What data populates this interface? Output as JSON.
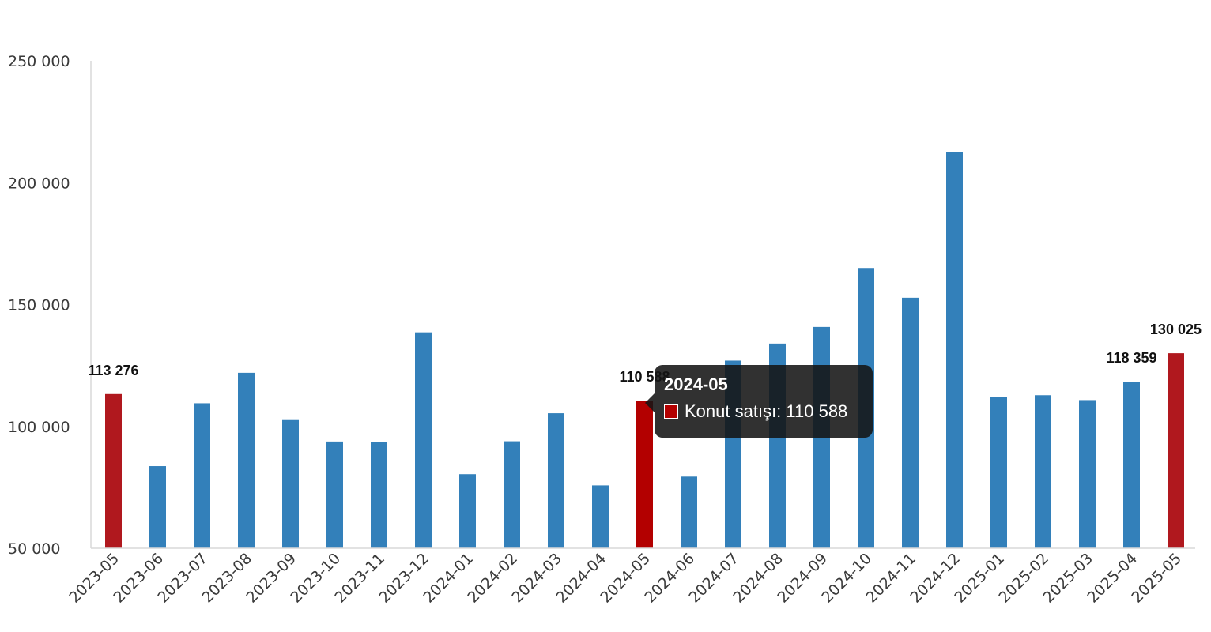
{
  "chart_data": {
    "type": "bar",
    "categories": [
      "2023-05",
      "2023-06",
      "2023-07",
      "2023-08",
      "2023-09",
      "2023-10",
      "2023-11",
      "2023-12",
      "2024-01",
      "2024-02",
      "2024-03",
      "2024-04",
      "2024-05",
      "2024-06",
      "2024-07",
      "2024-08",
      "2024-09",
      "2024-10",
      "2024-11",
      "2024-12",
      "2025-01",
      "2025-02",
      "2025-03",
      "2025-04",
      "2025-05"
    ],
    "series": [
      {
        "name": "Konut satışı",
        "values": [
          113276,
          83700,
          109500,
          122000,
          102600,
          93800,
          93500,
          138600,
          80400,
          93900,
          105400,
          75800,
          110588,
          79400,
          127000,
          134000,
          140800,
          165000,
          152800,
          212700,
          112200,
          112800,
          110800,
          118359,
          130025
        ]
      }
    ],
    "highlighted_categories": [
      "2023-05",
      "2024-05",
      "2025-05"
    ],
    "data_labels": [
      {
        "category": "2023-05",
        "text": "113 276"
      },
      {
        "category": "2024-05",
        "text": "110 588"
      },
      {
        "category": "2025-04",
        "text": "118 359"
      },
      {
        "category": "2025-05",
        "text": "130 025"
      }
    ],
    "ylim": [
      50000,
      250000
    ],
    "yticks": [
      50000,
      100000,
      150000,
      200000,
      250000
    ],
    "ytick_labels": [
      "50 000",
      "100 000",
      "150 000",
      "200 000",
      "250 000"
    ],
    "title": "",
    "xlabel": "",
    "ylabel": "",
    "grid": false,
    "colors": {
      "bar": "#3380ba",
      "highlight": "#b0181e",
      "active": "#b30000",
      "axis": "#d9d9d9"
    }
  },
  "tooltip": {
    "title": "2024-05",
    "label": "Konut satışı: 110 588",
    "swatch_color": "#b30000"
  }
}
